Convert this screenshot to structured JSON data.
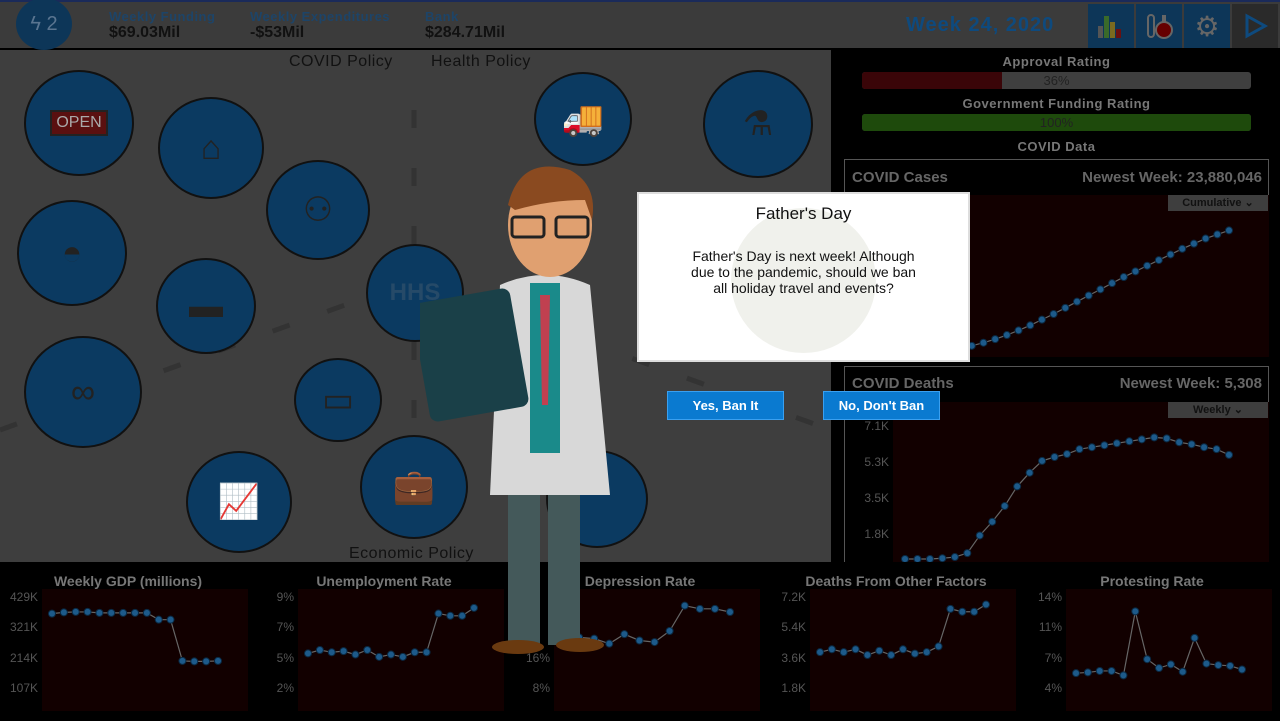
{
  "topbar": {
    "energy": "2",
    "funding_label": "Weekly Funding",
    "funding": "$69.03Mil",
    "expend_label": "Weekly Expenditures",
    "expend": "-$53Mil",
    "bank_label": "Bank",
    "bank": "$284.71Mil",
    "week": "Week 24, 2020",
    "buttons": [
      {
        "icon": "bar-chart-icon"
      },
      {
        "icon": "lab-flask-icon"
      },
      {
        "icon": "gear-icon"
      },
      {
        "icon": "play-icon"
      }
    ]
  },
  "map": {
    "covid_policy": "COVID Policy",
    "health_policy": "Health Policy",
    "economic_policy": "Economic Policy",
    "hhs": "HHS",
    "icons": [
      "open-sign-icon",
      "house-icon",
      "social-distance-icon",
      "face-mask-icon",
      "tank-icon",
      "hhs-icon",
      "handcuffs-icon",
      "money-wallet-icon",
      "briefcase-icon",
      "stock-chart-icon",
      "truck-icon",
      "test-tubes-icon",
      "usa-flag-icon"
    ]
  },
  "right": {
    "approval_label": "Approval Rating",
    "approval": "36%",
    "approval_value": 36,
    "funding_label": "Government Funding Rating",
    "funding": "100%",
    "funding_value": 100,
    "covid_data": "COVID Data",
    "cases": {
      "title": "COVID Cases",
      "newest": "Newest Week: 23,880,046",
      "mode": "Cumulative"
    },
    "deaths": {
      "title": "COVID Deaths",
      "newest": "Newest Week: 5,308",
      "mode": "Weekly",
      "ticks": [
        "7.1K",
        "5.3K",
        "3.5K",
        "1.8K"
      ]
    }
  },
  "dialog": {
    "title": "Father's Day",
    "body": "Father's Day is next week! Although due to the pandemic, should we ban all holiday travel and events?",
    "yes": "Yes, Ban It",
    "no": "No, Don't Ban"
  },
  "colors": {
    "approval": "#3a0508",
    "funding": "#1e4a0c",
    "point": "#1d5a8a",
    "accent": "#0a7ad0"
  },
  "chart_data": [
    {
      "type": "line",
      "title": "COVID Cases",
      "mode": "Cumulative",
      "ylim": [
        0,
        30000000
      ],
      "values": [
        50000,
        200000,
        500000,
        900000,
        1400000,
        2000000,
        2700000,
        3500000,
        4400000,
        5400000,
        6500000,
        7600000,
        8800000,
        10000000,
        11200000,
        12400000,
        13600000,
        14800000,
        15900000,
        17000000,
        18100000,
        19200000,
        20300000,
        21300000,
        22300000,
        23100000,
        23880046
      ]
    },
    {
      "type": "line",
      "title": "COVID Deaths",
      "mode": "Weekly",
      "ylim": [
        0,
        7800
      ],
      "values": [
        0,
        0,
        0,
        40,
        100,
        300,
        1200,
        1900,
        2700,
        3700,
        4400,
        5000,
        5200,
        5350,
        5600,
        5700,
        5800,
        5900,
        6000,
        6100,
        6200,
        6150,
        5950,
        5850,
        5700,
        5600,
        5308
      ]
    },
    {
      "type": "line",
      "title": "Weekly GDP (millions)",
      "ticks": [
        "429K",
        "321K",
        "214K",
        "107K"
      ],
      "ylim": [
        0,
        470000
      ],
      "values": [
        385000,
        390000,
        392000,
        392000,
        388000,
        388000,
        388000,
        388000,
        388000,
        360000,
        360000,
        190000,
        188000,
        188000,
        190000
      ]
    },
    {
      "type": "line",
      "title": "Unemployment Rate",
      "ticks": [
        "9%",
        "7%",
        "5%",
        "2%"
      ],
      "ylim": [
        0,
        10
      ],
      "values": [
        4.7,
        5.0,
        4.8,
        4.9,
        4.6,
        5.0,
        4.4,
        4.6,
        4.4,
        4.8,
        4.8,
        8.2,
        8.0,
        8.0,
        8.7
      ]
    },
    {
      "type": "line",
      "title": "Depression Rate",
      "ticks": [
        "16%",
        "8%"
      ],
      "ylim": [
        0,
        36
      ],
      "values": [
        24.5,
        22,
        21.6,
        20,
        23,
        21,
        20.5,
        24,
        32,
        31,
        31,
        30
      ]
    },
    {
      "type": "line",
      "title": "Deaths From Other Factors",
      "ticks": [
        "7.2K",
        "5.4K",
        "3.6K",
        "1.8K"
      ],
      "ylim": [
        0,
        7900
      ],
      "values": [
        3800,
        4000,
        3800,
        4000,
        3600,
        3900,
        3600,
        4000,
        3700,
        3800,
        4200,
        6800,
        6600,
        6600,
        7100
      ]
    },
    {
      "type": "line",
      "title": "Protesting Rate",
      "ticks": [
        "14%",
        "11%",
        "7%",
        "4%"
      ],
      "ylim": [
        0,
        15.5
      ],
      "values": [
        4.6,
        4.7,
        4.9,
        4.9,
        4.3,
        13.0,
        6.5,
        5.3,
        5.8,
        4.8,
        9.4,
        5.9,
        5.7,
        5.6,
        5.1
      ]
    }
  ]
}
